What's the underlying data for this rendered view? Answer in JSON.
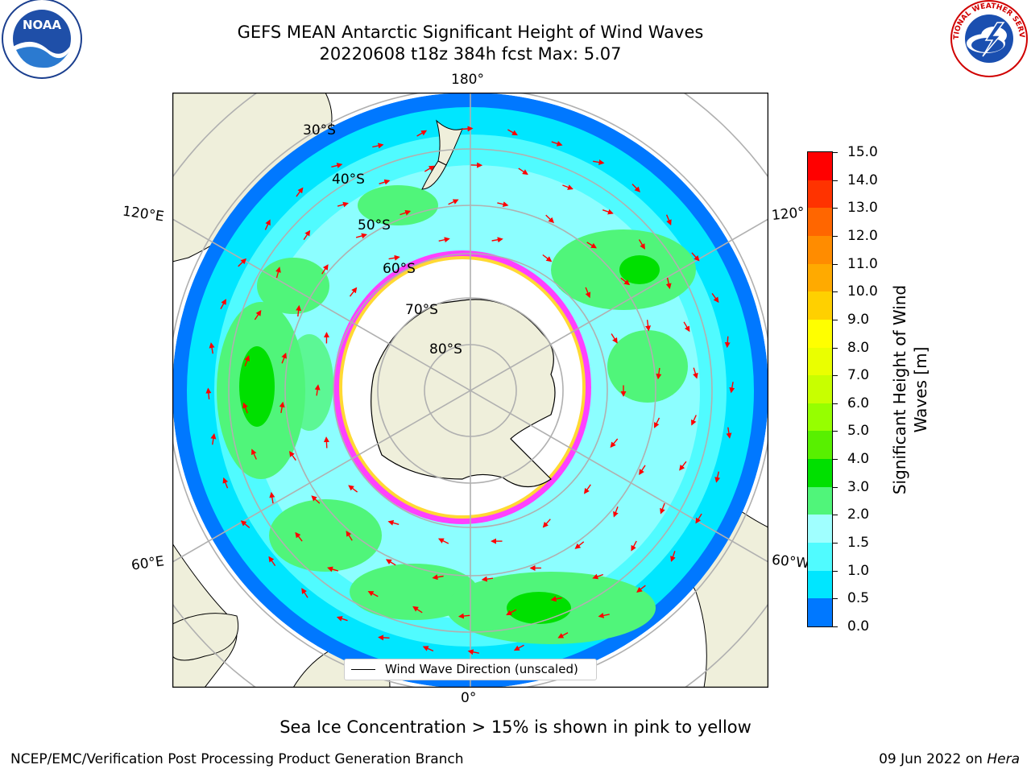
{
  "header": {
    "title_line1": "GEFS MEAN Antarctic Significant Height of Wind Waves",
    "title_line2": "20220608 t18z 384h fcst   Max: 5.07"
  },
  "logos": {
    "noara": {
      "text": "NOAA",
      "icon": "noaa-logo-icon"
    },
    "nws": {
      "text": "NATIONAL WEATHER SERVICE",
      "icon": "nws-logo-icon"
    }
  },
  "map": {
    "lon_labels": {
      "top": "180°",
      "bottom": "0°",
      "left_upper": "120°E",
      "left_lower": "60°E",
      "right_upper": "120°",
      "right_lower": "60°W"
    },
    "lat_labels": [
      "30°S",
      "40°S",
      "50°S",
      "60°S",
      "70°S",
      "80°S"
    ],
    "legend": "Wind Wave Direction (unscaled)"
  },
  "colorbar": {
    "label": "Significant Height of Wind Waves [m]",
    "label_line1": "Significant Height of Wind",
    "label_line2": "Waves [m]",
    "ticks": [
      "15.0",
      "14.0",
      "13.0",
      "12.0",
      "11.0",
      "10.0",
      "9.0",
      "8.0",
      "7.0",
      "6.0",
      "5.0",
      "4.0",
      "3.0",
      "2.0",
      "1.5",
      "1.0",
      "0.5",
      "0.0"
    ],
    "colors": [
      "#ff0000",
      "#ff3300",
      "#ff6600",
      "#ff8c00",
      "#ffaa00",
      "#ffd000",
      "#ffff00",
      "#eaff00",
      "#c8ff00",
      "#96ff00",
      "#58f000",
      "#00e000",
      "#50f57a",
      "#a0ffff",
      "#50fbff",
      "#00e6ff",
      "#0078ff",
      "#0000ff"
    ]
  },
  "notes": {
    "sea_ice": "Sea Ice Concentration > 15% is shown in pink to yellow"
  },
  "footer": {
    "left": "NCEP/EMC/Verification Post Processing Product Generation Branch",
    "right_date": "09 Jun 2022 on ",
    "right_machine": "Hera"
  }
}
